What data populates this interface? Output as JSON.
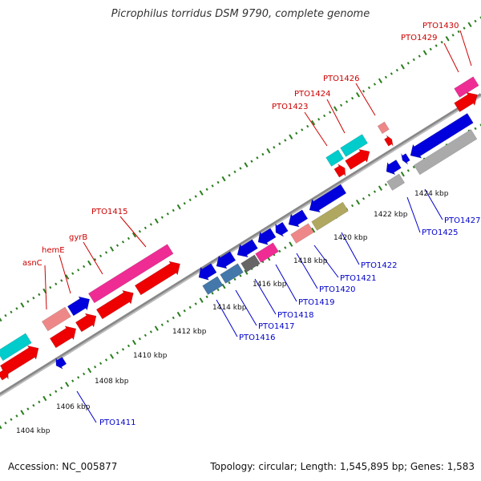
{
  "title": "Picrophilus torridus DSM 9790, complete genome",
  "footer": {
    "accession": "Accession: NC_005877",
    "summary": "Topology: circular; Length: 1,545,895 bp; Genes: 1,583"
  },
  "colors": {
    "backbone": "#888888",
    "tick": "#2a7d1e",
    "label_top": "#cc0000",
    "label_bottom": "#0000cc",
    "red": "#ee0000",
    "blue": "#0000dd",
    "pink": "#ee2c94",
    "salmon": "#ee8888",
    "cyan": "#00cccc",
    "gray": "#aaaaaa",
    "steel": "#4477aa",
    "olive": "#b0a860"
  },
  "axis_labels": [
    "1404 kbp",
    "1406 kbp",
    "1408 kbp",
    "1410 kbp",
    "1412 kbp",
    "1414 kbp",
    "1416 kbp",
    "1418 kbp",
    "1420 kbp",
    "1422 kbp",
    "1424 kbp"
  ],
  "genes": {
    "top": [
      "asnC",
      "hemE",
      "gyrB",
      "PTO1415",
      "PTO1423",
      "PTO1424",
      "PTO1426",
      "PTO1429",
      "PTO1430"
    ],
    "bottom": [
      "PTO1411",
      "PTO1416",
      "PTO1417",
      "PTO1418",
      "PTO1419",
      "PTO1420",
      "PTO1421",
      "PTO1422",
      "PTO1425",
      "PTO1427"
    ]
  }
}
